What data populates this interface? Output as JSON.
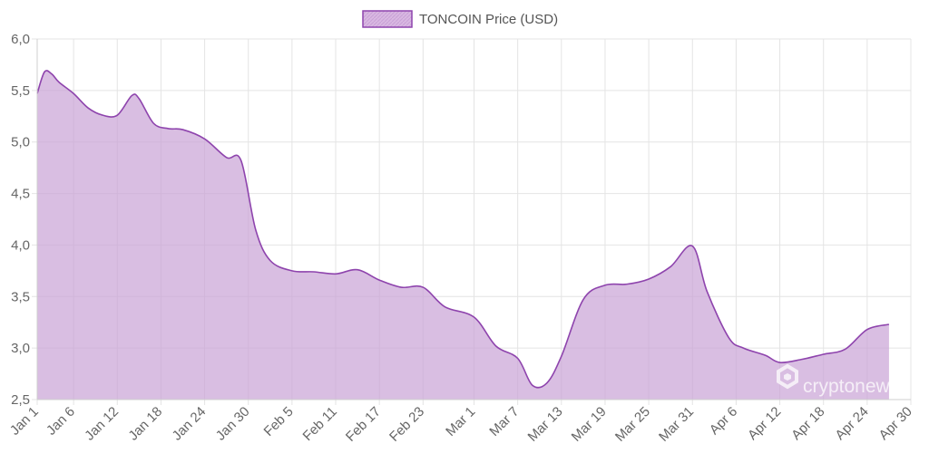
{
  "chart_data": {
    "type": "area",
    "legend": {
      "label": "TONCOIN Price (USD)",
      "position": "top",
      "swatch_color": "#d6b4de",
      "border_color": "#8e44ad"
    },
    "series": [
      {
        "name": "TONCOIN Price (USD)",
        "color": "#8e44ad",
        "fill": "#c9a2d6",
        "points": [
          [
            "2024-01-01",
            5.47
          ],
          [
            "2024-01-02",
            5.68
          ],
          [
            "2024-01-03",
            5.66
          ],
          [
            "2024-01-04",
            5.58
          ],
          [
            "2024-01-06",
            5.47
          ],
          [
            "2024-01-08",
            5.33
          ],
          [
            "2024-01-10",
            5.26
          ],
          [
            "2024-01-12",
            5.26
          ],
          [
            "2024-01-14",
            5.45
          ],
          [
            "2024-01-15",
            5.42
          ],
          [
            "2024-01-17",
            5.18
          ],
          [
            "2024-01-19",
            5.13
          ],
          [
            "2024-01-21",
            5.12
          ],
          [
            "2024-01-24",
            5.03
          ],
          [
            "2024-01-27",
            4.85
          ],
          [
            "2024-01-29",
            4.82
          ],
          [
            "2024-01-31",
            4.15
          ],
          [
            "2024-02-02",
            3.85
          ],
          [
            "2024-02-05",
            3.75
          ],
          [
            "2024-02-08",
            3.74
          ],
          [
            "2024-02-11",
            3.72
          ],
          [
            "2024-02-14",
            3.76
          ],
          [
            "2024-02-17",
            3.66
          ],
          [
            "2024-02-20",
            3.59
          ],
          [
            "2024-02-23",
            3.59
          ],
          [
            "2024-02-26",
            3.4
          ],
          [
            "2024-03-01",
            3.3
          ],
          [
            "2024-03-04",
            3.02
          ],
          [
            "2024-03-07",
            2.9
          ],
          [
            "2024-03-09",
            2.64
          ],
          [
            "2024-03-11",
            2.66
          ],
          [
            "2024-03-13",
            2.92
          ],
          [
            "2024-03-16",
            3.47
          ],
          [
            "2024-03-19",
            3.61
          ],
          [
            "2024-03-22",
            3.62
          ],
          [
            "2024-03-25",
            3.67
          ],
          [
            "2024-03-28",
            3.79
          ],
          [
            "2024-03-31",
            3.99
          ],
          [
            "2024-04-02",
            3.55
          ],
          [
            "2024-04-05",
            3.1
          ],
          [
            "2024-04-07",
            3.0
          ],
          [
            "2024-04-10",
            2.93
          ],
          [
            "2024-04-12",
            2.86
          ],
          [
            "2024-04-15",
            2.89
          ],
          [
            "2024-04-18",
            2.94
          ],
          [
            "2024-04-21",
            2.99
          ],
          [
            "2024-04-24",
            3.18
          ],
          [
            "2024-04-27",
            3.23
          ]
        ]
      }
    ],
    "x_axis": {
      "type": "date",
      "range": [
        "2024-01-01",
        "2024-04-30"
      ],
      "ticks": [
        {
          "date": "2024-01-01",
          "label": "Jan 1"
        },
        {
          "date": "2024-01-06",
          "label": "Jan 6"
        },
        {
          "date": "2024-01-12",
          "label": "Jan 12"
        },
        {
          "date": "2024-01-18",
          "label": "Jan 18"
        },
        {
          "date": "2024-01-24",
          "label": "Jan 24"
        },
        {
          "date": "2024-01-30",
          "label": "Jan 30"
        },
        {
          "date": "2024-02-05",
          "label": "Feb 5"
        },
        {
          "date": "2024-02-11",
          "label": "Feb 11"
        },
        {
          "date": "2024-02-17",
          "label": "Feb 17"
        },
        {
          "date": "2024-02-23",
          "label": "Feb 23"
        },
        {
          "date": "2024-03-01",
          "label": "Mar 1"
        },
        {
          "date": "2024-03-07",
          "label": "Mar 7"
        },
        {
          "date": "2024-03-13",
          "label": "Mar 13"
        },
        {
          "date": "2024-03-19",
          "label": "Mar 19"
        },
        {
          "date": "2024-03-25",
          "label": "Mar 25"
        },
        {
          "date": "2024-03-31",
          "label": "Mar 31"
        },
        {
          "date": "2024-04-06",
          "label": "Apr 6"
        },
        {
          "date": "2024-04-12",
          "label": "Apr 12"
        },
        {
          "date": "2024-04-18",
          "label": "Apr 18"
        },
        {
          "date": "2024-04-24",
          "label": "Apr 24"
        },
        {
          "date": "2024-04-30",
          "label": "Apr 30"
        }
      ]
    },
    "y_axis": {
      "range": [
        2.5,
        6.0
      ],
      "ticks": [
        {
          "value": 2.5,
          "label": "2,5"
        },
        {
          "value": 3.0,
          "label": "3,0"
        },
        {
          "value": 3.5,
          "label": "3,5"
        },
        {
          "value": 4.0,
          "label": "4,0"
        },
        {
          "value": 4.5,
          "label": "4,5"
        },
        {
          "value": 5.0,
          "label": "5,0"
        },
        {
          "value": 5.5,
          "label": "5,5"
        },
        {
          "value": 6.0,
          "label": "6,0"
        }
      ]
    },
    "grid": true,
    "watermark": "cryptonews"
  }
}
